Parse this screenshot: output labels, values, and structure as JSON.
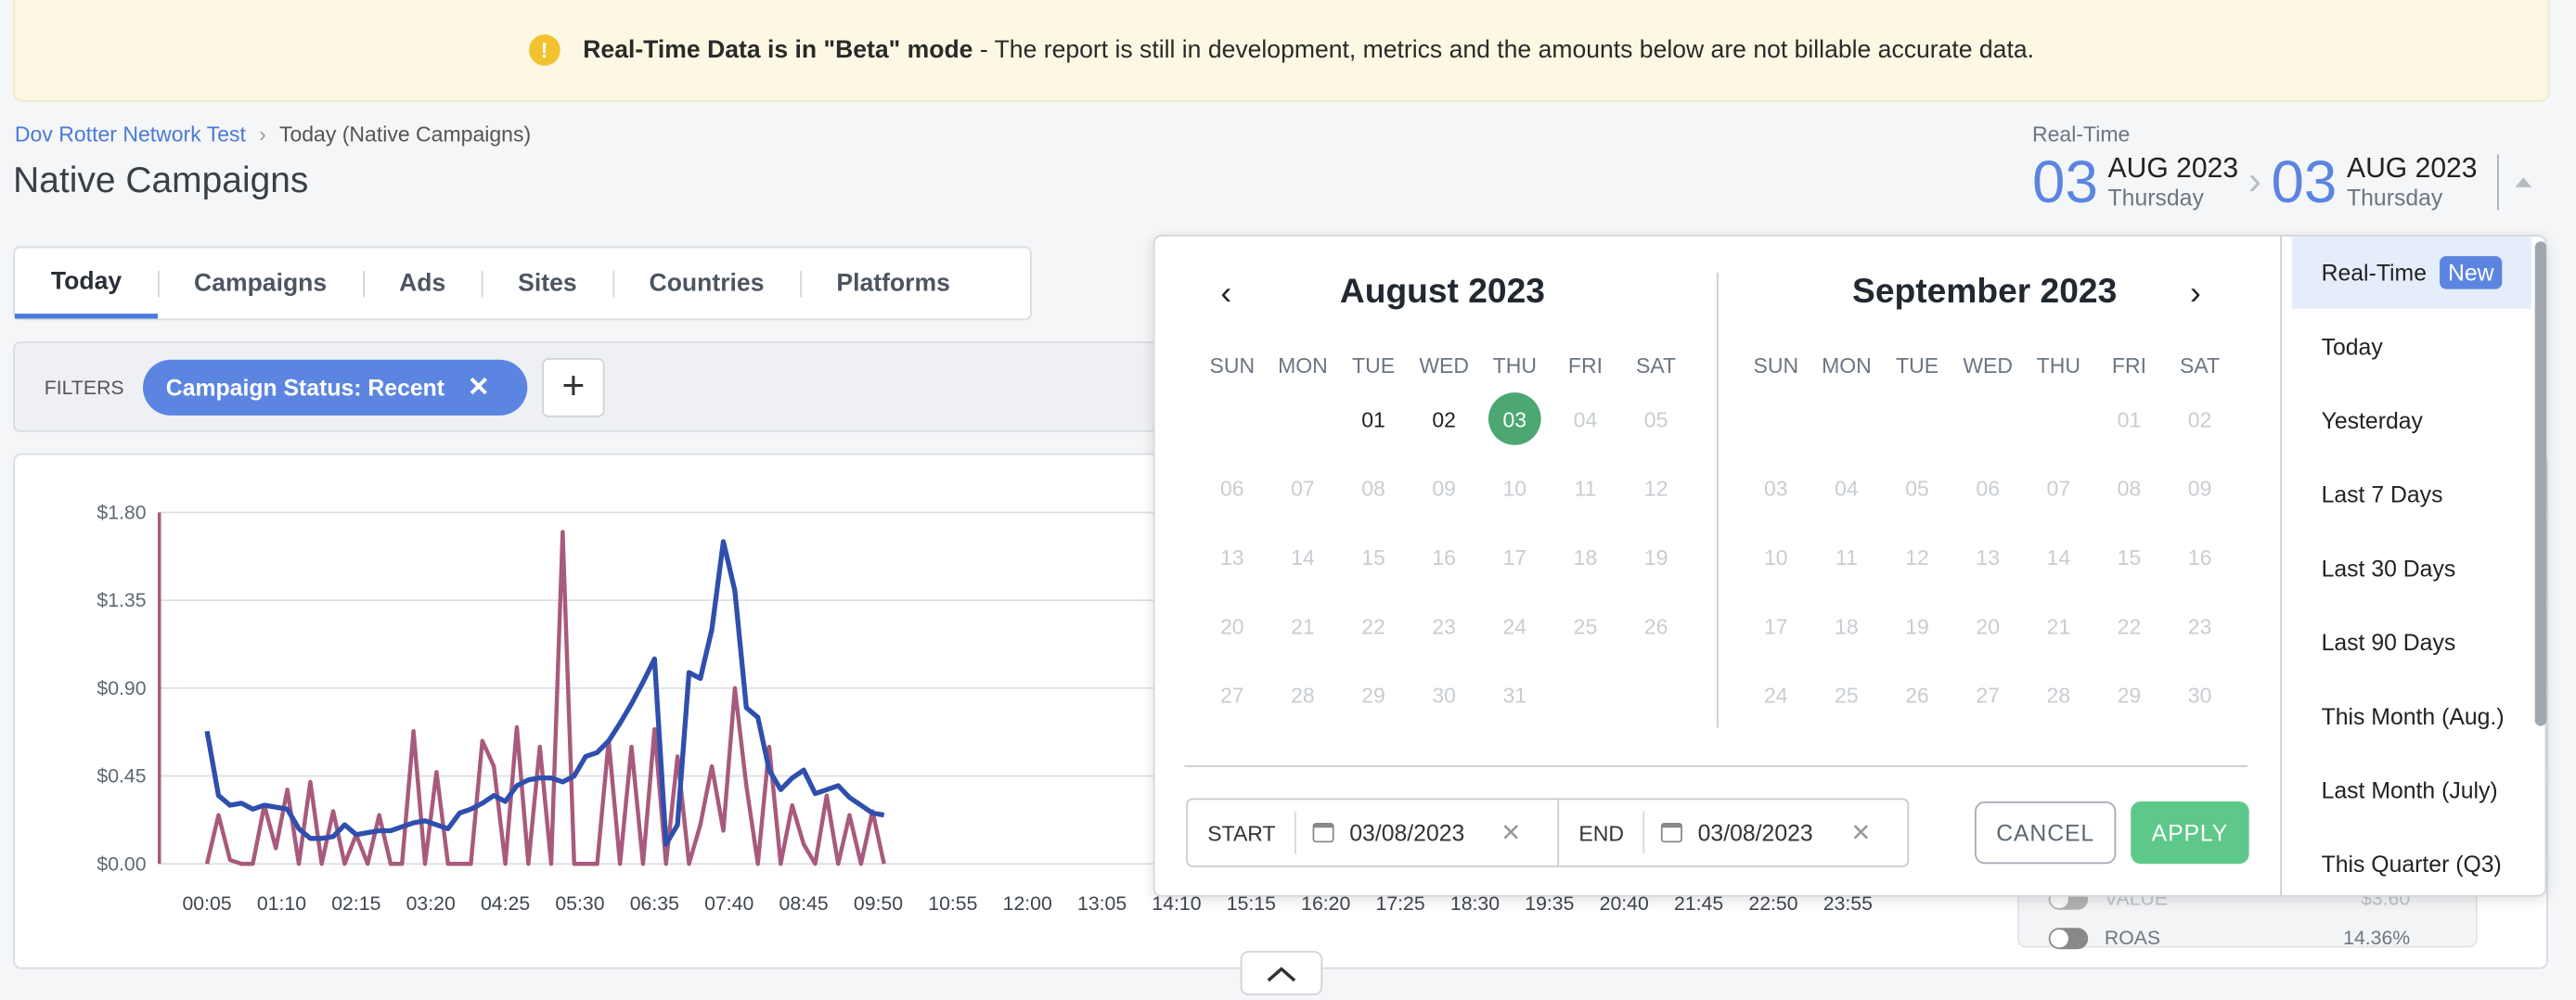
{
  "banner": {
    "icon": "warning-icon",
    "bold": "Real-Time Data is in \"Beta\" mode",
    "text": " - The report is still in development, metrics and the amounts below are not billable accurate data."
  },
  "breadcrumb": {
    "items": [
      "Dov Rotter Network Test",
      "Today (Native Campaigns)"
    ]
  },
  "page_title": "Native Campaigns",
  "tabs": [
    {
      "label": "Today",
      "active": true
    },
    {
      "label": "Campaigns"
    },
    {
      "label": "Ads"
    },
    {
      "label": "Sites"
    },
    {
      "label": "Countries"
    },
    {
      "label": "Platforms"
    }
  ],
  "filters": {
    "label": "FILTERS",
    "chip": "Campaign Status: Recent",
    "add": "+"
  },
  "range": {
    "label": "Real-Time",
    "start": {
      "day": "03",
      "month": "AUG 2023",
      "weekday": "Thursday"
    },
    "end": {
      "day": "03",
      "month": "AUG 2023",
      "weekday": "Thursday"
    }
  },
  "metrics": [
    {
      "label": "VALUE",
      "value": "$3.60"
    },
    {
      "label": "ROAS",
      "value": "14.36%"
    }
  ],
  "calendar": {
    "weekdays": [
      "SUN",
      "MON",
      "TUE",
      "WED",
      "THU",
      "FRI",
      "SAT"
    ],
    "months": [
      {
        "title": "August 2023",
        "first_weekday": 2,
        "days": 31,
        "enabled": [
          1,
          2
        ],
        "selected": 3
      },
      {
        "title": "September 2023",
        "first_weekday": 5,
        "days": 30,
        "enabled": [],
        "selected": null
      }
    ],
    "start_label": "START",
    "start_value": "03/08/2023",
    "end_label": "END",
    "end_value": "03/08/2023",
    "cancel": "CANCEL",
    "apply": "APPLY",
    "presets": [
      "Real-Time",
      "Today",
      "Yesterday",
      "Last 7 Days",
      "Last 30 Days",
      "Last 90 Days",
      "This Month (Aug.)",
      "Last Month (July)",
      "This Quarter (Q3)"
    ],
    "active_preset": "Real-Time",
    "new_badge": "New",
    "colors": {
      "selected": "#4ca772",
      "apply": "#5ec88a",
      "accent": "#5b85e0"
    }
  },
  "chart_data": {
    "type": "line",
    "ylim": [
      0,
      1.8
    ],
    "yticks": [
      "$0.00",
      "$0.45",
      "$0.90",
      "$1.35",
      "$1.80"
    ],
    "ytick_values": [
      0,
      0.45,
      0.9,
      1.35,
      1.8
    ],
    "xticks": [
      "00:05",
      "01:10",
      "02:15",
      "03:20",
      "04:25",
      "05:30",
      "06:35",
      "07:40",
      "08:45",
      "09:50",
      "10:55",
      "12:00",
      "13:05",
      "14:10",
      "15:15",
      "16:20",
      "17:25",
      "18:30",
      "19:35",
      "20:40",
      "21:45",
      "22:50",
      "23:55"
    ],
    "x": [
      "00:05",
      "00:15",
      "00:25",
      "00:35",
      "00:45",
      "00:55",
      "01:05",
      "01:15",
      "01:25",
      "01:35",
      "01:45",
      "01:55",
      "02:05",
      "02:15",
      "02:25",
      "02:35",
      "02:45",
      "02:55",
      "03:05",
      "03:15",
      "03:25",
      "03:35",
      "03:45",
      "03:55",
      "04:05",
      "04:15",
      "04:25",
      "04:35",
      "04:45",
      "04:55",
      "05:05",
      "05:15",
      "05:25",
      "05:35",
      "05:45",
      "05:55",
      "06:05",
      "06:15",
      "06:25",
      "06:35",
      "06:45",
      "06:55",
      "07:05",
      "07:15",
      "07:25",
      "07:35",
      "07:45",
      "07:55",
      "08:05",
      "08:15",
      "08:25",
      "08:35",
      "08:45",
      "08:55",
      "09:05",
      "09:15",
      "09:25",
      "09:35",
      "09:45",
      "09:55"
    ],
    "series": [
      {
        "color": "#2f4fad",
        "values": [
          0.68,
          0.35,
          0.3,
          0.31,
          0.28,
          0.3,
          0.29,
          0.28,
          0.18,
          0.13,
          0.13,
          0.14,
          0.2,
          0.15,
          0.16,
          0.17,
          0.17,
          0.19,
          0.21,
          0.22,
          0.2,
          0.18,
          0.26,
          0.28,
          0.31,
          0.35,
          0.32,
          0.4,
          0.43,
          0.44,
          0.44,
          0.42,
          0.45,
          0.55,
          0.57,
          0.63,
          0.72,
          0.82,
          0.93,
          1.05,
          0.1,
          0.2,
          0.98,
          0.95,
          1.2,
          1.65,
          1.4,
          0.8,
          0.75,
          0.48,
          0.38,
          0.44,
          0.48,
          0.36,
          0.38,
          0.4,
          0.34,
          0.3,
          0.26,
          0.25
        ]
      },
      {
        "color": "#a85a7c",
        "values": [
          0.0,
          0.25,
          0.02,
          0.0,
          0.0,
          0.3,
          0.08,
          0.38,
          0.0,
          0.42,
          0.0,
          0.27,
          0.0,
          0.15,
          0.0,
          0.25,
          0.0,
          0.0,
          0.68,
          0.0,
          0.47,
          0.0,
          0.0,
          0.0,
          0.63,
          0.5,
          0.0,
          0.7,
          0.0,
          0.6,
          0.0,
          1.7,
          0.0,
          0.0,
          0.0,
          0.63,
          0.0,
          0.6,
          0.0,
          0.69,
          0.0,
          0.55,
          0.0,
          0.2,
          0.5,
          0.17,
          0.9,
          0.4,
          0.0,
          0.6,
          0.0,
          0.3,
          0.1,
          0.0,
          0.35,
          0.0,
          0.25,
          0.0,
          0.27,
          0.0
        ]
      }
    ],
    "grid": true
  }
}
